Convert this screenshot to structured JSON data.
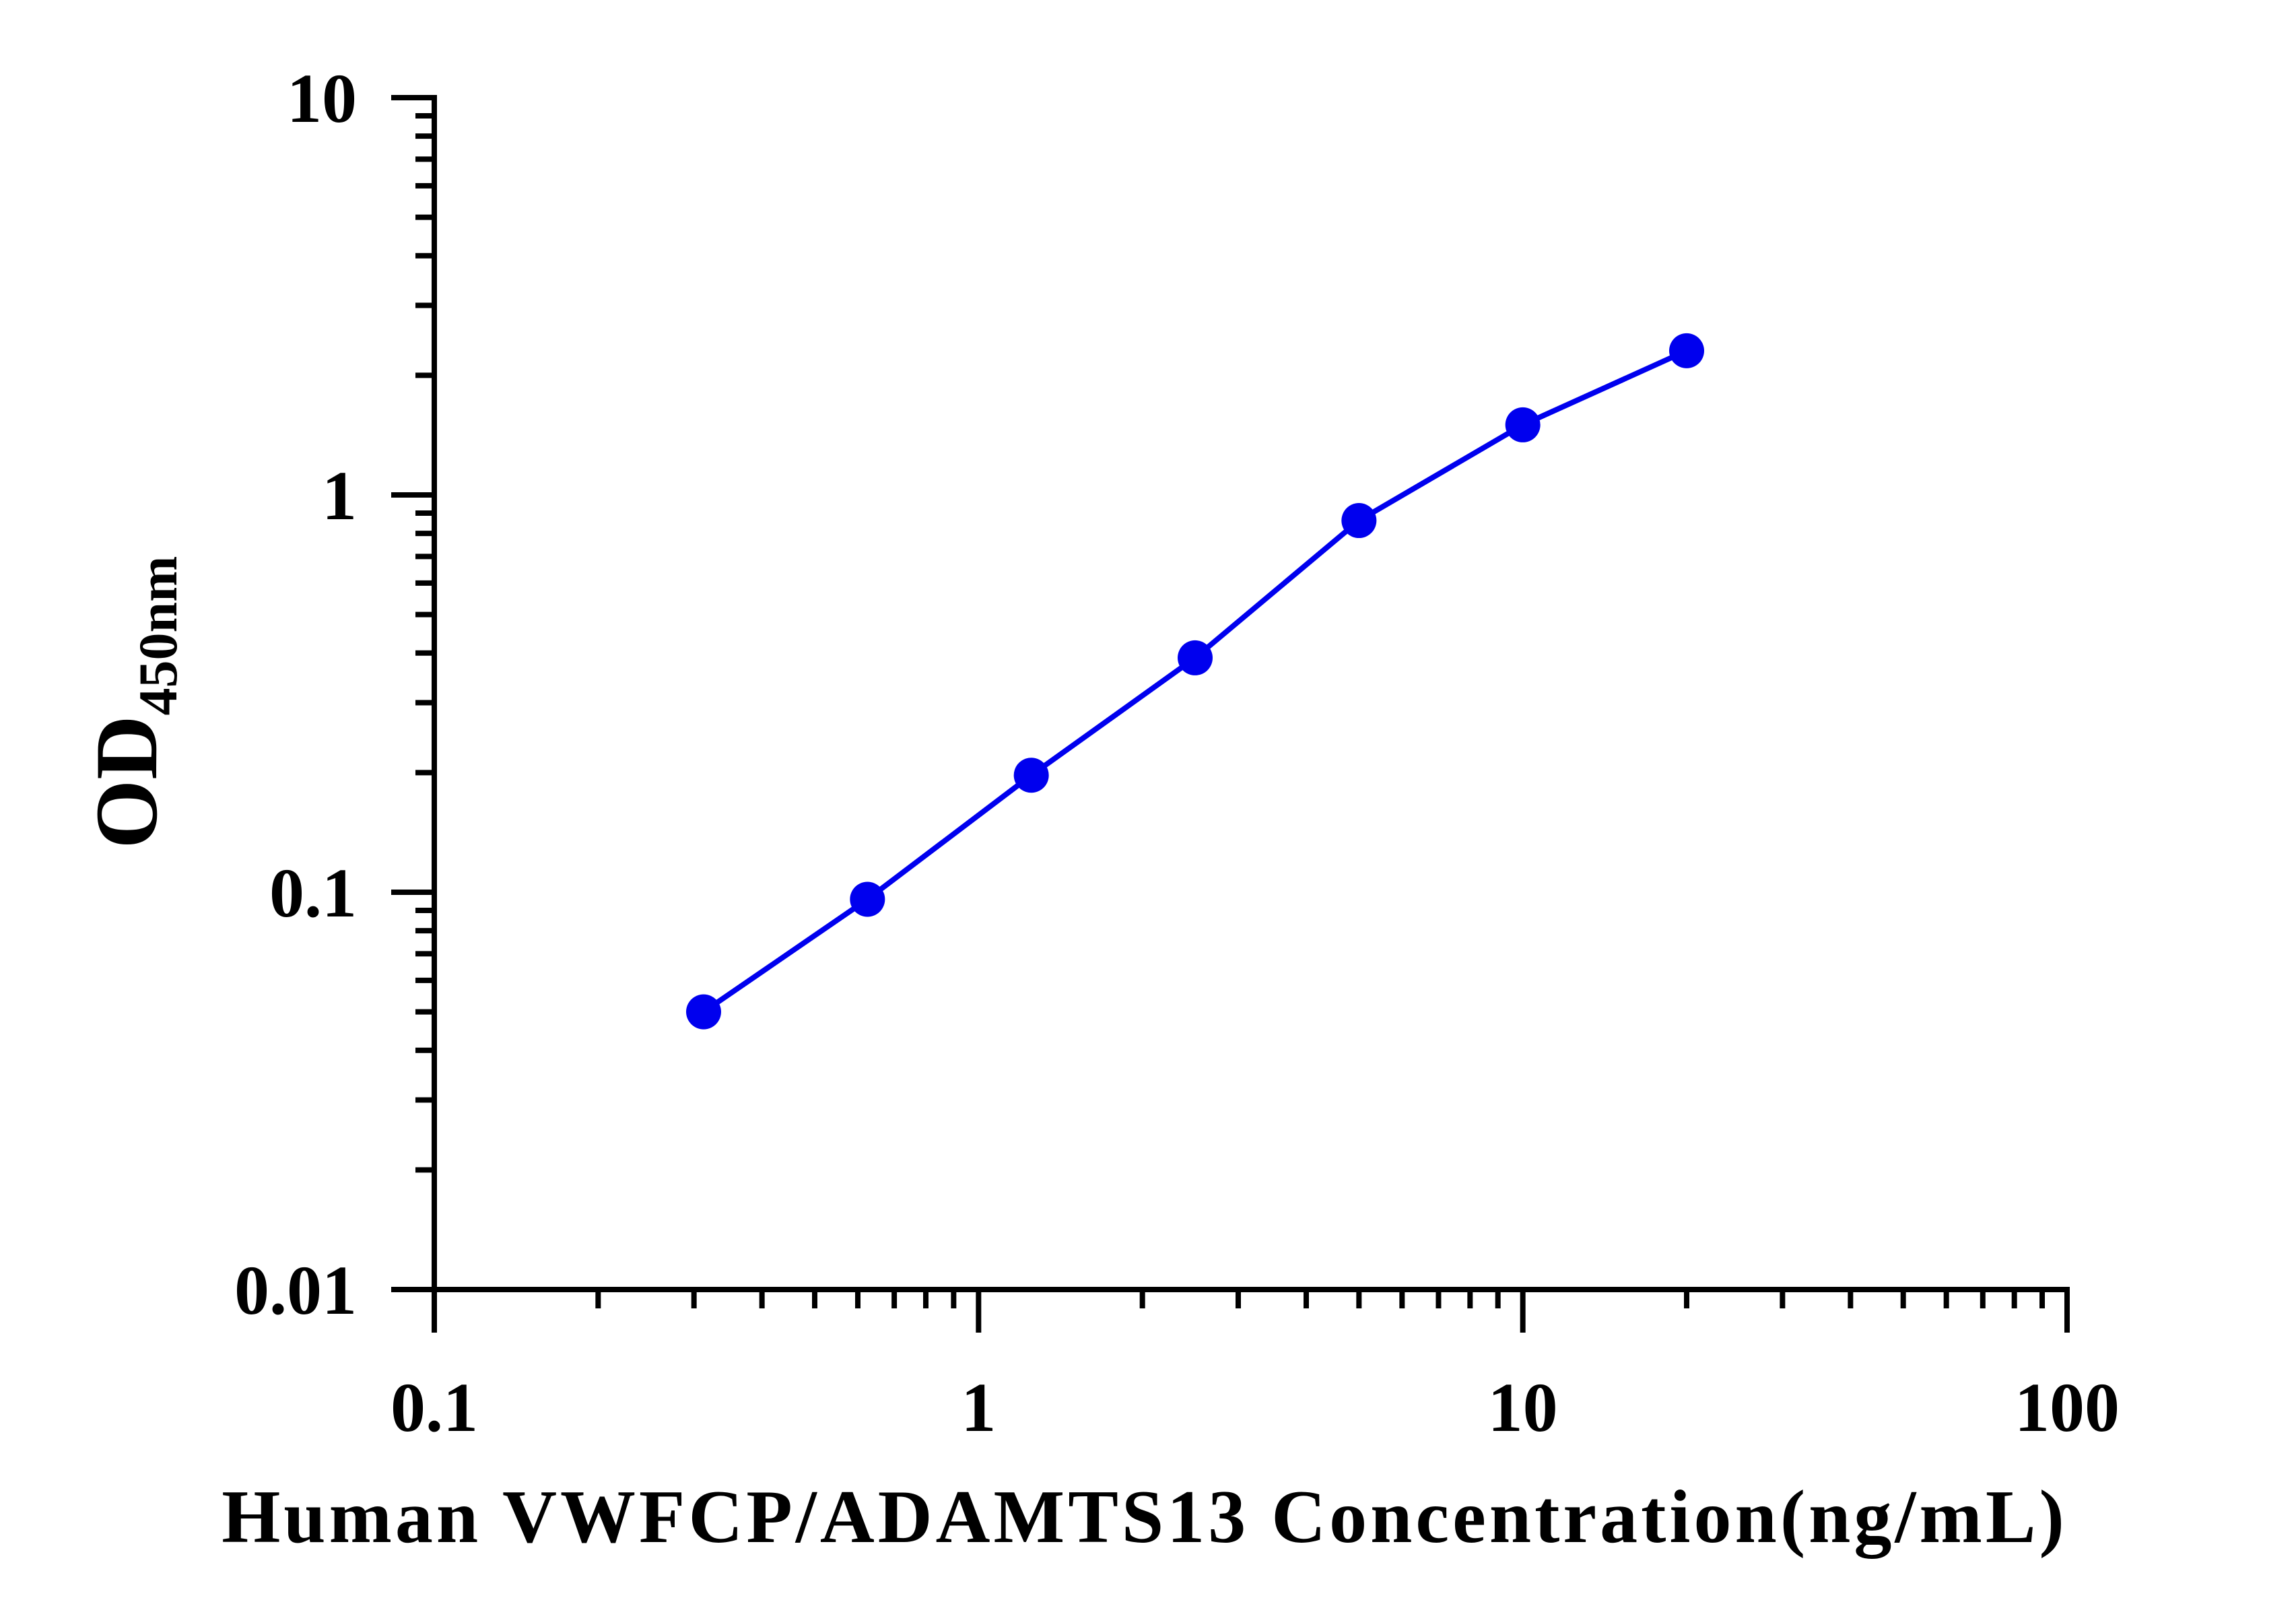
{
  "chart_data": {
    "type": "line",
    "xlabel": "Human VWFCP/ADAMTS13 Concentration(ng/mL)",
    "ylabel_main": "OD",
    "ylabel_sub": "450nm",
    "xscale": "log",
    "yscale": "log",
    "xlim": [
      0.1,
      100
    ],
    "ylim": [
      0.01,
      10
    ],
    "x_ticks": [
      "0.1",
      "1",
      "10",
      "100"
    ],
    "y_ticks": [
      "0.01",
      "0.1",
      "1",
      "10"
    ],
    "grid": false,
    "legend": "none",
    "series": [
      {
        "color": "#0000ee",
        "points": [
          {
            "x": 0.3125,
            "y": 0.05
          },
          {
            "x": 0.625,
            "y": 0.096
          },
          {
            "x": 1.25,
            "y": 0.197
          },
          {
            "x": 2.5,
            "y": 0.389
          },
          {
            "x": 5,
            "y": 0.862
          },
          {
            "x": 10,
            "y": 1.501
          },
          {
            "x": 20,
            "y": 2.306
          }
        ]
      }
    ]
  }
}
